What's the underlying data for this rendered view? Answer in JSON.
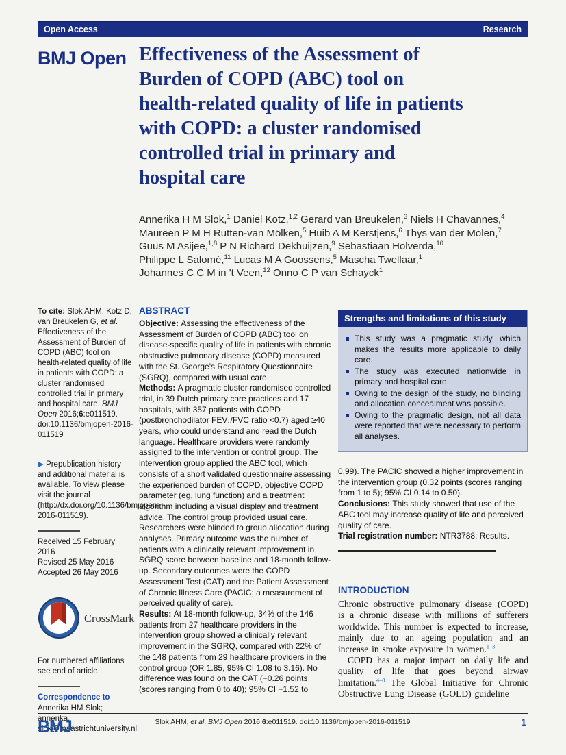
{
  "colors": {
    "navy_bar": "#1b2e85",
    "title_navy": "#1b3080",
    "section_heading_blue": "#1747ae",
    "strengths_body_bg": "#cdd4e3",
    "strengths_border": "#8494bd",
    "page_bg": "#f4f4f1",
    "footer_blue": "#1d4f9e",
    "crossmark_blue": "#2c5ea8",
    "crossmark_red": "#c13222",
    "reference_blue": "#2a6ebb"
  },
  "topbar": {
    "left": "Open Access",
    "right": "Research"
  },
  "masthead": {
    "logo": "BMJ Open",
    "title_lines": [
      "Effectiveness of the Assessment of",
      "Burden of COPD (ABC) tool on",
      "health-related quality of life in patients",
      "with COPD: a cluster randomised",
      "controlled trial in primary and",
      "hospital care"
    ]
  },
  "authors": {
    "lines": [
      [
        {
          "t": "Annerika H M Slok,"
        },
        {
          "t": "1",
          "sup": 1
        },
        {
          "t": " Daniel Kotz,"
        },
        {
          "t": "1,2",
          "sup": 1
        },
        {
          "t": " Gerard van Breukelen,"
        },
        {
          "t": "3",
          "sup": 1
        },
        {
          "t": " Niels H Chavannes,"
        },
        {
          "t": "4",
          "sup": 1
        }
      ],
      [
        {
          "t": "Maureen P M H Rutten-van Mölken,"
        },
        {
          "t": "5",
          "sup": 1
        },
        {
          "t": " Huib A M Kerstjens,"
        },
        {
          "t": "6",
          "sup": 1
        },
        {
          "t": " Thys van der Molen,"
        },
        {
          "t": "7",
          "sup": 1
        }
      ],
      [
        {
          "t": "Guus M Asijee,"
        },
        {
          "t": "1,8",
          "sup": 1
        },
        {
          "t": " P N Richard Dekhuijzen,"
        },
        {
          "t": "9",
          "sup": 1
        },
        {
          "t": " Sebastiaan Holverda,"
        },
        {
          "t": "10",
          "sup": 1
        }
      ],
      [
        {
          "t": "Philippe L Salomé,"
        },
        {
          "t": "11",
          "sup": 1
        },
        {
          "t": " Lucas M A Goossens,"
        },
        {
          "t": "5",
          "sup": 1
        },
        {
          "t": " Mascha Twellaar,"
        },
        {
          "t": "1",
          "sup": 1
        }
      ],
      [
        {
          "t": "Johannes C C M in 't Veen,"
        },
        {
          "t": "12",
          "sup": 1
        },
        {
          "t": " Onno C P van Schayck"
        },
        {
          "t": "1",
          "sup": 1
        }
      ]
    ]
  },
  "sidebar": {
    "cite": [
      {
        "t": "To cite: ",
        "b": 1
      },
      {
        "t": "Slok AHM, Kotz D, van Breukelen G, "
      },
      {
        "t": "et al",
        "i": 1
      },
      {
        "t": ". Effectiveness of the Assessment of Burden of COPD (ABC) tool on health-related quality of life in patients with COPD: a cluster randomised controlled trial in primary and hospital care. "
      },
      {
        "t": "BMJ Open ",
        "i": 1
      },
      {
        "t": "2016;"
      },
      {
        "t": "6",
        "b": 1
      },
      {
        "t": ":e011519. doi:10.1136/bmjopen-2016-011519"
      }
    ],
    "prepub": [
      {
        "t": "▶ ",
        "blue": 1
      },
      {
        "t": "Prepublication history and additional material is available. To view please visit the journal (http://dx.doi.org/10.1136/bmjopen-2016-011519)."
      }
    ],
    "dates": [
      "Received 15 February 2016",
      "Revised 25 May 2016",
      "Accepted 26 May 2016"
    ],
    "crossmark_label": "CrossMark",
    "affiliations_note": "For numbered affiliations see end of article.",
    "correspondence_label": "Correspondence to",
    "correspondence_lines": [
      "Annerika HM Slok; annerika.",
      "slok@maastrichtuniversity.nl"
    ]
  },
  "abstract": {
    "heading": "ABSTRACT",
    "objective": [
      {
        "t": "Objective: ",
        "b": 1
      },
      {
        "t": "Assessing the effectiveness of the Assessment of Burden of COPD (ABC) tool on disease-specific quality of life in patients with chronic obstructive pulmonary disease (COPD) measured with the St. George's Respiratory Questionnaire (SGRQ), compared with usual care."
      }
    ],
    "methods": [
      {
        "t": "Methods: ",
        "b": 1
      },
      {
        "t": "A pragmatic cluster randomised controlled trial, in 39 Dutch primary care practices and 17 hospitals, with 357 patients with COPD (postbronchodilator FEV"
      },
      {
        "t": "1",
        "sub": 1
      },
      {
        "t": "/FVC ratio <0.7) aged ≥40 years, who could understand and read the Dutch language. Healthcare providers were randomly assigned to the intervention or control group. The intervention group applied the ABC tool, which consists of a short validated questionnaire assessing the experienced burden of COPD, objective COPD parameter (eg, lung function) and a treatment algorithm including a visual display and treatment advice. The control group provided usual care. Researchers were blinded to group allocation during analyses. Primary outcome was the number of patients with a clinically relevant improvement in SGRQ score between baseline and 18-month follow-up. Secondary outcomes were the COPD Assessment Test (CAT) and the Patient Assessment of Chronic Illness Care (PACIC; a measurement of perceived quality of care)."
      }
    ],
    "results": [
      {
        "t": "Results: ",
        "b": 1
      },
      {
        "t": "At 18-month follow-up, 34% of the 146 patients from 27 healthcare providers in the intervention group showed a clinically relevant improvement in the SGRQ, compared with 22% of the 148 patients from 29 healthcare providers in the control group (OR 1.85, 95% CI 1.08 to 3.16). No difference was found on the CAT (−0.26 points (scores ranging from 0 to 40); 95% CI −1.52 to"
      }
    ]
  },
  "strengths": {
    "title": "Strengths and limitations of this study",
    "items": [
      "This study was a pragmatic study, which makes the results more applicable to daily care.",
      "The study was executed nationwide in primary and hospital care.",
      "Owing to the design of the study, no blinding and allocation concealment was possible.",
      "Owing to the pragmatic design, not all data were reported that were necessary to perform all analyses."
    ]
  },
  "right": {
    "continuation": [
      {
        "t": "0.99). The PACIC showed a higher improvement in the intervention group (0.32 points (scores ranging from 1 to 5); 95% CI 0.14 to 0.50)."
      }
    ],
    "conclusions": [
      {
        "t": "Conclusions: ",
        "b": 1
      },
      {
        "t": "This study showed that use of the ABC tool may increase quality of life and perceived quality of care."
      }
    ],
    "trial": [
      {
        "t": "Trial registration number: ",
        "b": 1
      },
      {
        "t": "NTR3788; Results."
      }
    ]
  },
  "introduction": {
    "heading": "INTRODUCTION",
    "p1": [
      {
        "t": "Chronic obstructive pulmonary disease (COPD) is a chronic disease with millions of sufferers worldwide. This number is expected to increase, mainly due to an ageing population and an increase in smoke exposure in women."
      },
      {
        "t": "1–3",
        "sup": 1,
        "blue": 1
      }
    ],
    "p2": [
      {
        "t": "COPD has a major impact on daily life and quality of life that goes beyond airway limitation."
      },
      {
        "t": "4–8",
        "sup": 1,
        "blue": 1
      },
      {
        "t": " The Global Initiative for Chronic Obstructive Lung Disease (GOLD) guideline"
      }
    ]
  },
  "footer": {
    "logo": "BMJ",
    "citation": [
      {
        "t": "Slok AHM, "
      },
      {
        "t": "et al",
        "i": 1
      },
      {
        "t": ". "
      },
      {
        "t": "BMJ Open ",
        "i": 1
      },
      {
        "t": "2016;"
      },
      {
        "t": "6",
        "b": 1
      },
      {
        "t": ":e011519. doi:10.1136/bmjopen-2016-011519"
      }
    ],
    "page": "1"
  }
}
